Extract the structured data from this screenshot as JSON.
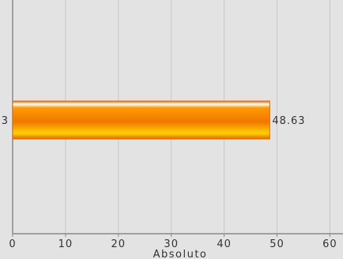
{
  "chart_data": {
    "type": "bar",
    "orientation": "horizontal",
    "categories": [
      "3"
    ],
    "values": [
      48.63
    ],
    "value_labels": [
      "48.63"
    ],
    "xlabel": "Absoluto",
    "ylabel": "",
    "xlim": [
      0,
      62
    ],
    "x_ticks": [
      0,
      10,
      20,
      30,
      40,
      50,
      60
    ],
    "x_tick_labels": [
      "0",
      "10",
      "20",
      "30",
      "40",
      "50",
      "60"
    ],
    "grid": true,
    "legend": "none",
    "colors": {
      "background": "#e3e3e3",
      "grid": "#c8c8c8",
      "axis": "#8a8a8a",
      "bar_top": "#ffffff",
      "bar_light": "#ffd000",
      "bar_mid": "#ff9a00",
      "bar_dark": "#f07800",
      "bar_edge": "#e06a00"
    }
  }
}
